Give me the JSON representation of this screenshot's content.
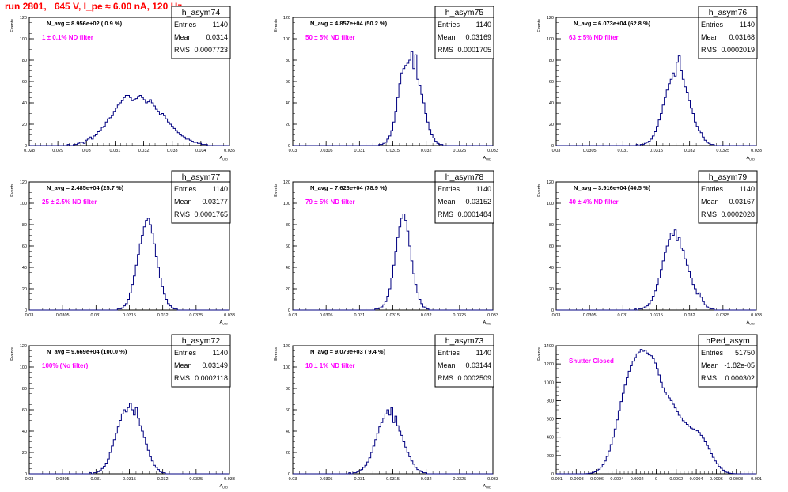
{
  "page": {
    "title": "run 2801,   645 V, I_pe ≈ 6.00 nA, 120 Hz"
  },
  "colors": {
    "histogram": "#000080",
    "filter_label": "#ff00ff",
    "title_text": "#ff0000",
    "frame": "#000000"
  },
  "chart_data": [
    {
      "type": "bar",
      "name": "h_asym74",
      "annotation": "N_avg = 8.956e+02 ( 0.9 %)",
      "filter_label": "1 ± 0.1% ND filter",
      "stats": {
        "entries": "1140",
        "mean": "0.0314",
        "rms": "0.0007723"
      },
      "ylabel": "Events",
      "xlabel": "A_UID",
      "xlim": [
        0.028,
        0.035
      ],
      "ylim": [
        0,
        120
      ],
      "xticks": [
        "0.028",
        "0.029",
        "0.03",
        "0.031",
        "0.032",
        "0.033",
        "0.034",
        "0.035"
      ],
      "yticks": [
        "0",
        "20",
        "40",
        "60",
        "80",
        "100",
        "120"
      ],
      "bins": 100,
      "values": [
        0,
        0,
        0,
        0,
        0,
        0,
        0,
        0,
        0,
        0,
        0,
        0,
        0,
        0,
        0,
        0,
        0,
        0,
        0,
        1,
        0,
        0,
        1,
        1,
        2,
        3,
        3,
        2,
        5,
        6,
        8,
        6,
        9,
        10,
        13,
        14,
        17,
        18,
        22,
        25,
        26,
        28,
        32,
        35,
        38,
        40,
        42,
        45,
        47,
        47,
        45,
        42,
        43,
        44,
        46,
        47,
        45,
        43,
        40,
        41,
        43,
        40,
        37,
        34,
        32,
        29,
        30,
        28,
        25,
        22,
        20,
        18,
        16,
        14,
        12,
        10,
        9,
        8,
        6,
        6,
        5,
        4,
        3,
        3,
        2,
        2,
        1,
        1,
        1,
        0,
        0,
        0,
        0,
        0,
        0,
        0,
        0,
        0,
        0,
        0
      ]
    },
    {
      "type": "bar",
      "name": "h_asym75",
      "annotation": "N_avg = 4.857e+04 (50.2 %)",
      "filter_label": "50 ± 5% ND filter",
      "stats": {
        "entries": "1140",
        "mean": "0.03169",
        "rms": "0.0001705"
      },
      "ylabel": "Events",
      "xlabel": "A_UID",
      "xlim": [
        0.03,
        0.033
      ],
      "ylim": [
        0,
        120
      ],
      "xticks": [
        "0.03",
        "0.0305",
        "0.031",
        "0.0315",
        "0.032",
        "0.0325",
        "0.033"
      ],
      "yticks": [
        "0",
        "20",
        "40",
        "60",
        "80",
        "100",
        "120"
      ],
      "bins": 100,
      "values": [
        0,
        0,
        0,
        0,
        0,
        0,
        0,
        0,
        0,
        0,
        0,
        0,
        0,
        0,
        0,
        0,
        0,
        0,
        0,
        0,
        0,
        0,
        0,
        0,
        0,
        0,
        0,
        0,
        0,
        0,
        0,
        0,
        0,
        0,
        0,
        0,
        0,
        0,
        0,
        0,
        0,
        0,
        0,
        1,
        1,
        2,
        3,
        6,
        9,
        14,
        22,
        32,
        45,
        58,
        68,
        72,
        75,
        77,
        80,
        88,
        72,
        85,
        62,
        56,
        48,
        40,
        30,
        22,
        15,
        10,
        7,
        4,
        2,
        1,
        1,
        0,
        0,
        0,
        0,
        0,
        0,
        0,
        0,
        0,
        0,
        0,
        0,
        0,
        0,
        0,
        0,
        0,
        0,
        0,
        0,
        0,
        0,
        0,
        0,
        0
      ]
    },
    {
      "type": "bar",
      "name": "h_asym76",
      "annotation": "N_avg = 6.073e+04 (62.8 %)",
      "filter_label": "63 ± 5% ND filter",
      "stats": {
        "entries": "1140",
        "mean": "0.03168",
        "rms": "0.0002019"
      },
      "ylabel": "Events",
      "xlabel": "A_UID",
      "xlim": [
        0.03,
        0.033
      ],
      "ylim": [
        0,
        120
      ],
      "xticks": [
        "0.03",
        "0.0305",
        "0.031",
        "0.0315",
        "0.032",
        "0.0325",
        "0.033"
      ],
      "yticks": [
        "0",
        "20",
        "40",
        "60",
        "80",
        "100",
        "120"
      ],
      "bins": 100,
      "values": [
        0,
        0,
        0,
        0,
        0,
        0,
        0,
        0,
        0,
        0,
        0,
        0,
        0,
        0,
        0,
        0,
        0,
        0,
        0,
        0,
        0,
        0,
        0,
        0,
        0,
        0,
        0,
        0,
        0,
        0,
        0,
        0,
        0,
        0,
        0,
        0,
        0,
        0,
        0,
        0,
        1,
        0,
        1,
        1,
        2,
        3,
        4,
        6,
        9,
        13,
        18,
        24,
        30,
        38,
        45,
        52,
        58,
        62,
        68,
        65,
        78,
        84,
        70,
        62,
        55,
        50,
        42,
        35,
        30,
        22,
        18,
        14,
        12,
        8,
        5,
        3,
        2,
        1,
        1,
        0,
        0,
        0,
        0,
        0,
        0,
        0,
        0,
        0,
        0,
        0,
        0,
        0,
        0,
        0,
        0,
        0,
        0,
        0,
        0,
        0
      ]
    },
    {
      "type": "bar",
      "name": "h_asym77",
      "annotation": "N_avg = 2.485e+04 (25.7 %)",
      "filter_label": "25 ± 2.5% ND filter",
      "stats": {
        "entries": "1140",
        "mean": "0.03177",
        "rms": "0.0001765"
      },
      "ylabel": "Events",
      "xlabel": "A_UID",
      "xlim": [
        0.03,
        0.033
      ],
      "ylim": [
        0,
        120
      ],
      "xticks": [
        "0.03",
        "0.0305",
        "0.031",
        "0.0315",
        "0.032",
        "0.0325",
        "0.033"
      ],
      "yticks": [
        "0",
        "20",
        "40",
        "60",
        "80",
        "100",
        "120"
      ],
      "bins": 100,
      "values": [
        0,
        0,
        0,
        0,
        0,
        0,
        0,
        0,
        0,
        0,
        0,
        0,
        0,
        0,
        0,
        0,
        0,
        0,
        0,
        0,
        0,
        0,
        0,
        0,
        0,
        0,
        0,
        0,
        0,
        0,
        0,
        0,
        0,
        0,
        0,
        0,
        0,
        0,
        0,
        0,
        0,
        0,
        0,
        0,
        1,
        1,
        2,
        4,
        6,
        10,
        16,
        24,
        32,
        42,
        52,
        62,
        70,
        78,
        84,
        86,
        80,
        72,
        62,
        50,
        40,
        30,
        22,
        15,
        10,
        6,
        4,
        2,
        1,
        1,
        0,
        0,
        0,
        0,
        0,
        0,
        0,
        0,
        0,
        0,
        0,
        0,
        0,
        0,
        0,
        0,
        0,
        0,
        0,
        0,
        0,
        0,
        0,
        0,
        0,
        0
      ]
    },
    {
      "type": "bar",
      "name": "h_asym78",
      "annotation": "N_avg = 7.626e+04 (78.9 %)",
      "filter_label": "79 ± 5% ND filter",
      "stats": {
        "entries": "1140",
        "mean": "0.03152",
        "rms": "0.0001484"
      },
      "ylabel": "Events",
      "xlabel": "A_UID",
      "xlim": [
        0.03,
        0.033
      ],
      "ylim": [
        0,
        120
      ],
      "xticks": [
        "0.03",
        "0.0305",
        "0.031",
        "0.0315",
        "0.032",
        "0.0325",
        "0.033"
      ],
      "yticks": [
        "0",
        "20",
        "40",
        "60",
        "80",
        "100",
        "120"
      ],
      "bins": 100,
      "values": [
        0,
        0,
        0,
        0,
        0,
        0,
        0,
        0,
        0,
        0,
        0,
        0,
        0,
        0,
        0,
        0,
        0,
        0,
        0,
        0,
        0,
        0,
        0,
        0,
        0,
        0,
        0,
        0,
        0,
        0,
        0,
        0,
        0,
        0,
        0,
        0,
        0,
        0,
        0,
        0,
        0,
        1,
        1,
        2,
        3,
        5,
        8,
        13,
        20,
        30,
        42,
        55,
        68,
        78,
        86,
        90,
        84,
        74,
        60,
        46,
        34,
        24,
        16,
        10,
        6,
        3,
        2,
        1,
        0,
        0,
        0,
        0,
        0,
        0,
        0,
        0,
        0,
        0,
        0,
        0,
        0,
        0,
        0,
        0,
        0,
        0,
        0,
        0,
        0,
        0,
        0,
        0,
        0,
        0,
        0,
        0,
        0,
        0,
        0,
        0
      ]
    },
    {
      "type": "bar",
      "name": "h_asym79",
      "annotation": "N_avg = 3.916e+04 (40.5 %)",
      "filter_label": "40 ± 4% ND filter",
      "stats": {
        "entries": "1140",
        "mean": "0.03167",
        "rms": "0.0002028"
      },
      "ylabel": "Events",
      "xlabel": "A_UID",
      "xlim": [
        0.03,
        0.033
      ],
      "ylim": [
        0,
        120
      ],
      "xticks": [
        "0.03",
        "0.0305",
        "0.031",
        "0.0315",
        "0.032",
        "0.0325",
        "0.033"
      ],
      "yticks": [
        "0",
        "20",
        "40",
        "60",
        "80",
        "100",
        "120"
      ],
      "bins": 100,
      "values": [
        0,
        0,
        0,
        0,
        0,
        0,
        0,
        0,
        0,
        0,
        0,
        0,
        0,
        0,
        0,
        0,
        0,
        0,
        0,
        0,
        0,
        0,
        0,
        0,
        0,
        0,
        0,
        0,
        0,
        0,
        0,
        0,
        0,
        0,
        0,
        0,
        0,
        0,
        0,
        1,
        0,
        1,
        1,
        2,
        3,
        4,
        6,
        9,
        13,
        18,
        24,
        30,
        38,
        46,
        54,
        60,
        66,
        72,
        70,
        75,
        65,
        68,
        58,
        56,
        48,
        42,
        36,
        30,
        24,
        20,
        15,
        16,
        12,
        8,
        5,
        3,
        2,
        1,
        1,
        0,
        0,
        0,
        0,
        0,
        0,
        0,
        0,
        0,
        0,
        0,
        0,
        0,
        0,
        0,
        0,
        0,
        0,
        0,
        0,
        0
      ]
    },
    {
      "type": "bar",
      "name": "h_asym72",
      "annotation": "N_avg = 9.669e+04 (100.0 %)",
      "filter_label": "100% (No filter)",
      "stats": {
        "entries": "1140",
        "mean": "0.03149",
        "rms": "0.0002118"
      },
      "ylabel": "Events",
      "xlabel": "A_UID",
      "xlim": [
        0.03,
        0.033
      ],
      "ylim": [
        0,
        120
      ],
      "xticks": [
        "0.03",
        "0.0305",
        "0.031",
        "0.0315",
        "0.032",
        "0.0325",
        "0.033"
      ],
      "yticks": [
        "0",
        "20",
        "40",
        "60",
        "80",
        "100",
        "120"
      ],
      "bins": 100,
      "values": [
        0,
        0,
        0,
        0,
        0,
        0,
        0,
        0,
        0,
        0,
        0,
        0,
        0,
        0,
        0,
        0,
        0,
        0,
        0,
        0,
        0,
        0,
        0,
        0,
        0,
        0,
        0,
        0,
        0,
        0,
        1,
        0,
        1,
        1,
        2,
        3,
        5,
        7,
        10,
        14,
        20,
        26,
        32,
        38,
        44,
        50,
        56,
        60,
        58,
        62,
        66,
        60,
        55,
        62,
        52,
        45,
        40,
        34,
        28,
        22,
        16,
        12,
        8,
        6,
        4,
        2,
        1,
        1,
        0,
        0,
        0,
        0,
        0,
        0,
        0,
        0,
        0,
        0,
        0,
        0,
        0,
        0,
        0,
        0,
        0,
        0,
        0,
        0,
        0,
        0,
        0,
        0,
        0,
        0,
        0,
        0,
        0,
        0,
        0,
        0
      ]
    },
    {
      "type": "bar",
      "name": "h_asym73",
      "annotation": "N_avg = 9.079e+03 ( 9.4 %)",
      "filter_label": "10 ± 1% ND filter",
      "stats": {
        "entries": "1140",
        "mean": "0.03144",
        "rms": "0.0002509"
      },
      "ylabel": "Events",
      "xlabel": "A_UID",
      "xlim": [
        0.03,
        0.033
      ],
      "ylim": [
        0,
        120
      ],
      "xticks": [
        "0.03",
        "0.0305",
        "0.031",
        "0.0315",
        "0.032",
        "0.0325",
        "0.033"
      ],
      "yticks": [
        "0",
        "20",
        "40",
        "60",
        "80",
        "100",
        "120"
      ],
      "bins": 100,
      "values": [
        0,
        0,
        0,
        0,
        0,
        0,
        0,
        0,
        0,
        0,
        0,
        0,
        0,
        0,
        0,
        0,
        0,
        0,
        0,
        0,
        0,
        0,
        0,
        0,
        0,
        0,
        0,
        0,
        1,
        0,
        1,
        1,
        2,
        3,
        4,
        6,
        8,
        11,
        15,
        20,
        26,
        32,
        38,
        44,
        48,
        52,
        56,
        60,
        55,
        62,
        48,
        54,
        45,
        40,
        36,
        30,
        25,
        20,
        16,
        12,
        9,
        6,
        4,
        3,
        2,
        1,
        1,
        0,
        0,
        0,
        0,
        0,
        0,
        0,
        0,
        0,
        0,
        0,
        0,
        0,
        0,
        0,
        0,
        0,
        0,
        0,
        0,
        0,
        0,
        0,
        0,
        0,
        0,
        0,
        0,
        0,
        0,
        0,
        0,
        0
      ]
    },
    {
      "type": "bar",
      "name": "hPed_asym",
      "annotation": "",
      "filter_label": "Shutter Closed",
      "stats": {
        "entries": "51750",
        "mean": "-1.82e-05",
        "rms": "0.000302"
      },
      "ylabel": "Events",
      "xlabel": "",
      "xlim": [
        -0.001,
        0.001
      ],
      "ylim": [
        0,
        1400
      ],
      "xticks": [
        "-0.001",
        "-0.0008",
        "-0.0006",
        "-0.0004",
        "-0.0002",
        "0",
        "0.0002",
        "0.0004",
        "0.0006",
        "0.0008",
        "0.001"
      ],
      "yticks": [
        "0",
        "200",
        "400",
        "600",
        "800",
        "1000",
        "1200",
        "1400"
      ],
      "bins": 100,
      "values": [
        0,
        0,
        0,
        0,
        0,
        0,
        0,
        0,
        0,
        0,
        0,
        0,
        0,
        0,
        0,
        2,
        4,
        8,
        14,
        22,
        34,
        50,
        72,
        100,
        140,
        190,
        250,
        320,
        400,
        490,
        590,
        690,
        790,
        880,
        970,
        1050,
        1120,
        1180,
        1230,
        1270,
        1310,
        1330,
        1360,
        1340,
        1350,
        1320,
        1300,
        1290,
        1260,
        1210,
        1150,
        1080,
        1000,
        940,
        890,
        860,
        830,
        800,
        760,
        720,
        680,
        640,
        610,
        580,
        560,
        540,
        520,
        500,
        490,
        480,
        470,
        450,
        420,
        390,
        350,
        310,
        270,
        220,
        180,
        140,
        110,
        80,
        60,
        40,
        25,
        15,
        8,
        4,
        2,
        1,
        0,
        0,
        0,
        0,
        0,
        0,
        0,
        0,
        0,
        0
      ]
    }
  ]
}
